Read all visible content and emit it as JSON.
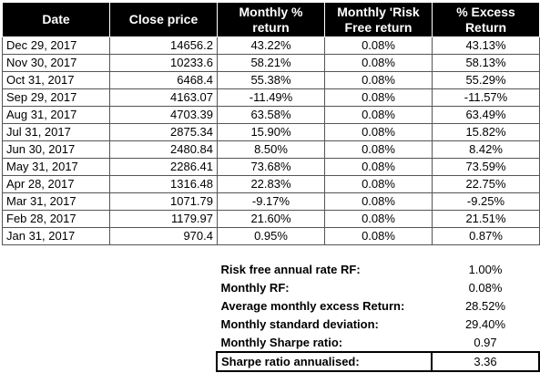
{
  "table": {
    "headers": [
      "Date",
      "Close price",
      "Monthly %\nreturn",
      "Monthly 'Risk\nFree return",
      "% Excess\nReturn"
    ],
    "rows": [
      [
        "Dec 29, 2017",
        "14656.2",
        "43.22%",
        "0.08%",
        "43.13%"
      ],
      [
        "Nov 30, 2017",
        "10233.6",
        "58.21%",
        "0.08%",
        "58.13%"
      ],
      [
        "Oct 31, 2017",
        "6468.4",
        "55.38%",
        "0.08%",
        "55.29%"
      ],
      [
        "Sep 29, 2017",
        "4163.07",
        "-11.49%",
        "0.08%",
        "-11.57%"
      ],
      [
        "Aug 31, 2017",
        "4703.39",
        "63.58%",
        "0.08%",
        "63.49%"
      ],
      [
        "Jul 31, 2017",
        "2875.34",
        "15.90%",
        "0.08%",
        "15.82%"
      ],
      [
        "Jun 30, 2017",
        "2480.84",
        "8.50%",
        "0.08%",
        "8.42%"
      ],
      [
        "May 31, 2017",
        "2286.41",
        "73.68%",
        "0.08%",
        "73.59%"
      ],
      [
        "Apr 28, 2017",
        "1316.48",
        "22.83%",
        "0.08%",
        "22.75%"
      ],
      [
        "Mar 31, 2017",
        "1071.79",
        "-9.17%",
        "0.08%",
        "-9.25%"
      ],
      [
        "Feb 28, 2017",
        "1179.97",
        "21.60%",
        "0.08%",
        "21.51%"
      ],
      [
        "Jan 31, 2017",
        "970.4",
        "0.95%",
        "0.08%",
        "0.87%"
      ]
    ]
  },
  "summary": [
    {
      "label": "Risk free annual rate RF:",
      "value": "1.00%"
    },
    {
      "label": "Monthly RF:",
      "value": "0.08%"
    },
    {
      "label": "Average monthly excess Return:",
      "value": "28.52%"
    },
    {
      "label": "Monthly standard deviation:",
      "value": "29.40%"
    },
    {
      "label": "Monthly Sharpe ratio:",
      "value": "0.97"
    },
    {
      "label": "Sharpe ratio annualised:",
      "value": "3.36",
      "boxed": true
    }
  ],
  "colors": {
    "header_background": "#000000",
    "header_text": "#ffffff",
    "grid_line": "#555555"
  }
}
